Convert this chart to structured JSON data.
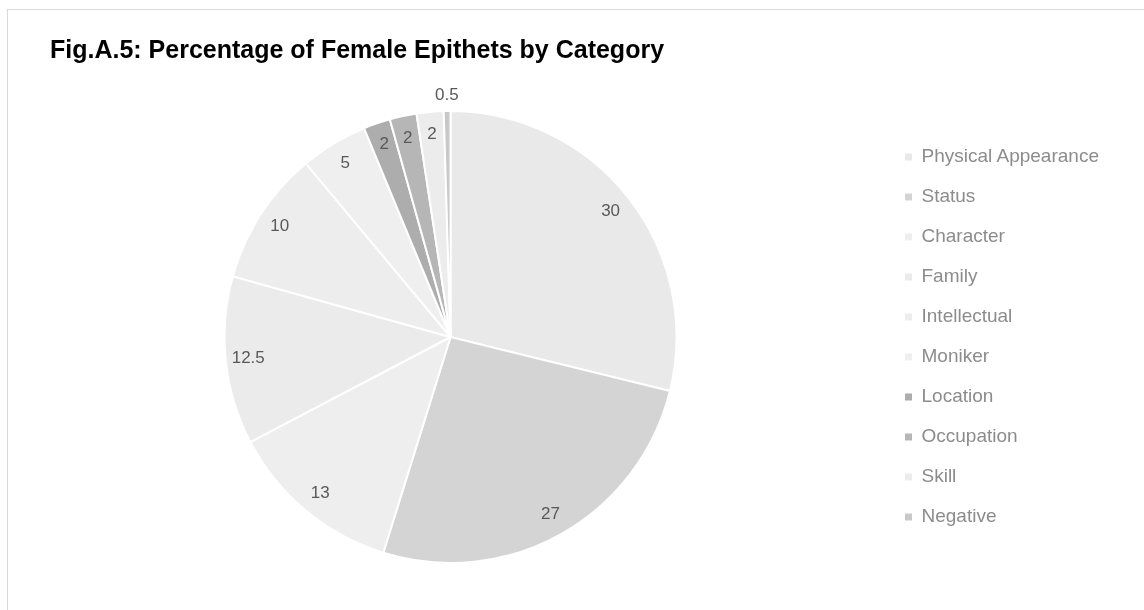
{
  "chart_data": {
    "type": "pie",
    "title": "Fig.A.5: Percentage of Female Epithets by Category",
    "categories": [
      "Physical Appearance",
      "Status",
      "Character",
      "Family",
      "Intellectual",
      "Moniker",
      "Location",
      "Occupation",
      "Skill",
      "Negative"
    ],
    "values": [
      30,
      27,
      13,
      12.5,
      10,
      5,
      2,
      2,
      2,
      0.5
    ],
    "colors": [
      "#e9e9e9",
      "#d4d4d4",
      "#eeeeee",
      "#ebebeb",
      "#ededed",
      "#efefef",
      "#adadad",
      "#b6b6b6",
      "#ececec",
      "#c8c8c8"
    ],
    "data_labels": true,
    "legend": "right"
  }
}
